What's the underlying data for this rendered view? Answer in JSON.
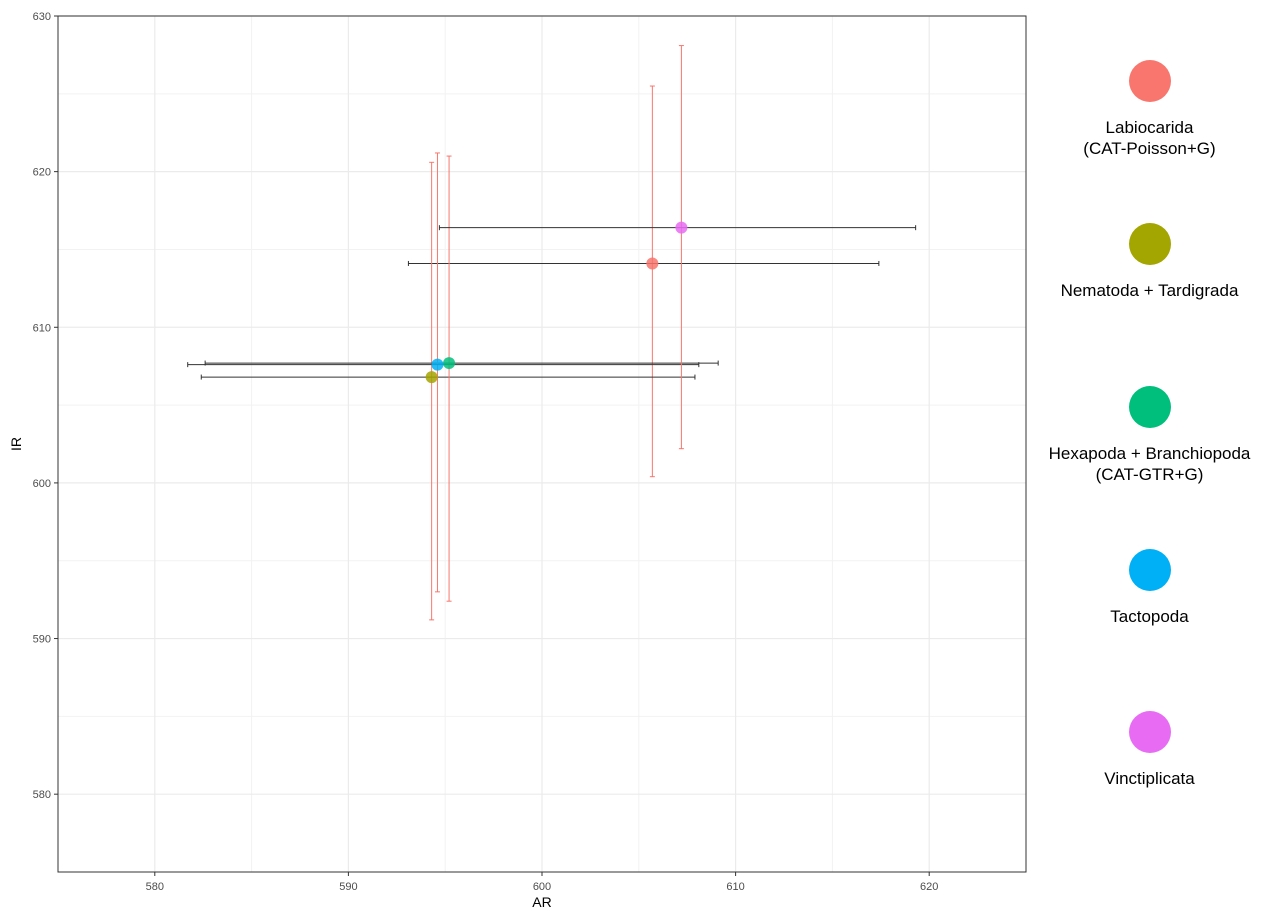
{
  "chart_data": {
    "type": "scatter",
    "title": "",
    "xlabel": "AR",
    "ylabel": "IR",
    "xlim": [
      575,
      625
    ],
    "ylim": [
      575,
      630
    ],
    "x_ticks": [
      580,
      590,
      600,
      610,
      620
    ],
    "y_ticks": [
      580,
      590,
      600,
      610,
      620,
      630
    ],
    "x_tick_labels": [
      "580",
      "590",
      "600",
      "610",
      "620"
    ],
    "y_tick_labels": [
      "580",
      "590",
      "600",
      "610",
      "620",
      "630"
    ],
    "grid": true,
    "legend_position": "right",
    "x_error_color": "#333333",
    "y_error_color": "#F8766D",
    "series": [
      {
        "name": "Labiocarida\n(CAT-Poisson+G)",
        "color": "#F8766D",
        "x": 605.7,
        "y": 614.1,
        "x_err": [
          593.1,
          617.4
        ],
        "y_err": [
          600.4,
          625.5
        ]
      },
      {
        "name": "Nematoda + Tardigrada",
        "color": "#A3A500",
        "x": 594.3,
        "y": 606.8,
        "x_err": [
          582.4,
          607.9
        ],
        "y_err": [
          591.2,
          620.6
        ]
      },
      {
        "name": "Hexapoda + Branchiopoda\n(CAT-GTR+G)",
        "color": "#00BF7D",
        "x": 595.2,
        "y": 607.7,
        "x_err": [
          582.6,
          609.1
        ],
        "y_err": [
          592.4,
          621.0
        ]
      },
      {
        "name": "Tactopoda",
        "color": "#00B0F6",
        "x": 594.6,
        "y": 607.6,
        "x_err": [
          581.7,
          608.1
        ],
        "y_err": [
          593.0,
          621.2
        ]
      },
      {
        "name": "Vinctiplicata",
        "color": "#E76BF3",
        "x": 607.2,
        "y": 616.4,
        "x_err": [
          594.7,
          619.3
        ],
        "y_err": [
          602.2,
          628.1
        ]
      }
    ]
  }
}
